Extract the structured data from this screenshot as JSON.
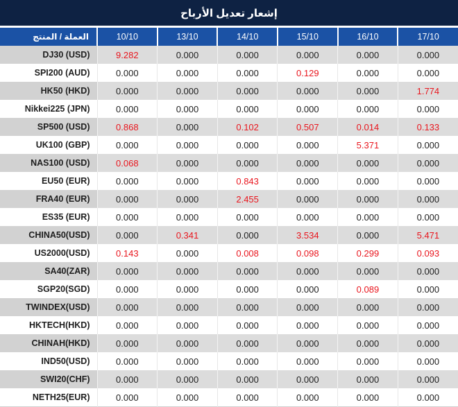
{
  "title": "إشعار تعديل الأرباح",
  "colors": {
    "title_bg": "#0e2243",
    "header_bg": "#1b52a5",
    "red_value": "#e9151d",
    "stripe_value_bg": "#dcdcdc",
    "stripe_label_bg": "#d2d2d2",
    "text": "#1d1d1d"
  },
  "table": {
    "product_header": "العملة / المنتج",
    "date_columns": [
      "10/10",
      "13/10",
      "14/10",
      "15/10",
      "16/10",
      "17/10"
    ],
    "rows": [
      {
        "label": "DJ30 (USD)",
        "values": [
          "9.282",
          "0.000",
          "0.000",
          "0.000",
          "0.000",
          "0.000"
        ],
        "red": [
          true,
          false,
          false,
          false,
          false,
          false
        ]
      },
      {
        "label": "SPI200 (AUD)",
        "values": [
          "0.000",
          "0.000",
          "0.000",
          "0.129",
          "0.000",
          "0.000"
        ],
        "red": [
          false,
          false,
          false,
          true,
          false,
          false
        ]
      },
      {
        "label": "HK50 (HKD)",
        "values": [
          "0.000",
          "0.000",
          "0.000",
          "0.000",
          "0.000",
          "1.774"
        ],
        "red": [
          false,
          false,
          false,
          false,
          false,
          true
        ]
      },
      {
        "label": "Nikkei225 (JPN)",
        "values": [
          "0.000",
          "0.000",
          "0.000",
          "0.000",
          "0.000",
          "0.000"
        ],
        "red": [
          false,
          false,
          false,
          false,
          false,
          false
        ]
      },
      {
        "label": "SP500 (USD)",
        "values": [
          "0.868",
          "0.000",
          "0.102",
          "0.507",
          "0.014",
          "0.133"
        ],
        "red": [
          true,
          false,
          true,
          true,
          true,
          true
        ]
      },
      {
        "label": "UK100 (GBP)",
        "values": [
          "0.000",
          "0.000",
          "0.000",
          "0.000",
          "5.371",
          "0.000"
        ],
        "red": [
          false,
          false,
          false,
          false,
          true,
          false
        ]
      },
      {
        "label": "NAS100 (USD)",
        "values": [
          "0.068",
          "0.000",
          "0.000",
          "0.000",
          "0.000",
          "0.000"
        ],
        "red": [
          true,
          false,
          false,
          false,
          false,
          false
        ]
      },
      {
        "label": "EU50 (EUR)",
        "values": [
          "0.000",
          "0.000",
          "0.843",
          "0.000",
          "0.000",
          "0.000"
        ],
        "red": [
          false,
          false,
          true,
          false,
          false,
          false
        ]
      },
      {
        "label": "FRA40 (EUR)",
        "values": [
          "0.000",
          "0.000",
          "2.455",
          "0.000",
          "0.000",
          "0.000"
        ],
        "red": [
          false,
          false,
          true,
          false,
          false,
          false
        ]
      },
      {
        "label": "ES35 (EUR)",
        "values": [
          "0.000",
          "0.000",
          "0.000",
          "0.000",
          "0.000",
          "0.000"
        ],
        "red": [
          false,
          false,
          false,
          false,
          false,
          false
        ]
      },
      {
        "label": "CHINA50(USD)",
        "values": [
          "0.000",
          "0.341",
          "0.000",
          "3.534",
          "0.000",
          "5.471"
        ],
        "red": [
          false,
          true,
          false,
          true,
          false,
          true
        ]
      },
      {
        "label": "US2000(USD)",
        "values": [
          "0.143",
          "0.000",
          "0.008",
          "0.098",
          "0.299",
          "0.093"
        ],
        "red": [
          true,
          false,
          true,
          true,
          true,
          true
        ]
      },
      {
        "label": "SA40(ZAR)",
        "values": [
          "0.000",
          "0.000",
          "0.000",
          "0.000",
          "0.000",
          "0.000"
        ],
        "red": [
          false,
          false,
          false,
          false,
          false,
          false
        ]
      },
      {
        "label": "SGP20(SGD)",
        "values": [
          "0.000",
          "0.000",
          "0.000",
          "0.000",
          "0.089",
          "0.000"
        ],
        "red": [
          false,
          false,
          false,
          false,
          true,
          false
        ]
      },
      {
        "label": "TWINDEX(USD)",
        "values": [
          "0.000",
          "0.000",
          "0.000",
          "0.000",
          "0.000",
          "0.000"
        ],
        "red": [
          false,
          false,
          false,
          false,
          false,
          false
        ]
      },
      {
        "label": "HKTECH(HKD)",
        "values": [
          "0.000",
          "0.000",
          "0.000",
          "0.000",
          "0.000",
          "0.000"
        ],
        "red": [
          false,
          false,
          false,
          false,
          false,
          false
        ]
      },
      {
        "label": "CHINAH(HKD)",
        "values": [
          "0.000",
          "0.000",
          "0.000",
          "0.000",
          "0.000",
          "0.000"
        ],
        "red": [
          false,
          false,
          false,
          false,
          false,
          false
        ]
      },
      {
        "label": "IND50(USD)",
        "values": [
          "0.000",
          "0.000",
          "0.000",
          "0.000",
          "0.000",
          "0.000"
        ],
        "red": [
          false,
          false,
          false,
          false,
          false,
          false
        ]
      },
      {
        "label": "SWI20(CHF)",
        "values": [
          "0.000",
          "0.000",
          "0.000",
          "0.000",
          "0.000",
          "0.000"
        ],
        "red": [
          false,
          false,
          false,
          false,
          false,
          false
        ]
      },
      {
        "label": "NETH25(EUR)",
        "values": [
          "0.000",
          "0.000",
          "0.000",
          "0.000",
          "0.000",
          "0.000"
        ],
        "red": [
          false,
          false,
          false,
          false,
          false,
          false
        ]
      }
    ]
  }
}
